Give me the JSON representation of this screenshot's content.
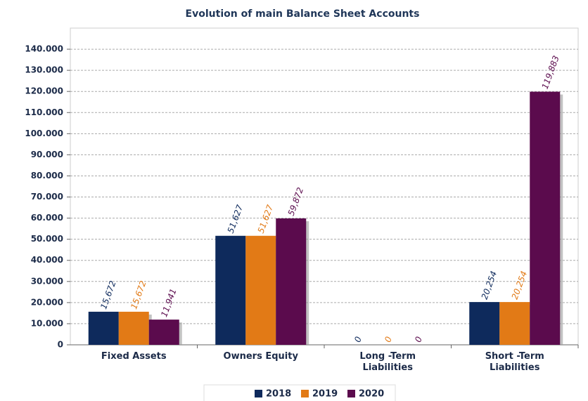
{
  "chart_data": {
    "type": "bar",
    "title": "Evolution of main Balance Sheet Accounts",
    "categories": [
      "Fixed Assets",
      "Owners Equity",
      "Long -Term Liabilities",
      "Short -Term Liabilities"
    ],
    "series": [
      {
        "name": "2018",
        "color": "#0e2a5c",
        "values": [
          15672,
          51627,
          0,
          20254
        ],
        "value_labels": [
          "15,672",
          "51,627",
          "0",
          "20,254"
        ]
      },
      {
        "name": "2019",
        "color": "#e27a16",
        "values": [
          15672,
          51627,
          0,
          20254
        ],
        "value_labels": [
          "15,672",
          "51,627",
          "0",
          "20,254"
        ]
      },
      {
        "name": "2020",
        "color": "#5b0b4d",
        "values": [
          11941,
          59872,
          0,
          119883
        ],
        "value_labels": [
          "11,941",
          "59,872",
          "0",
          "119,883"
        ]
      }
    ],
    "ylim": [
      0,
      150000
    ],
    "yticks": [
      0,
      {
        "value": 10000,
        "label": "10.000"
      },
      {
        "value": 20000,
        "label": "20.000"
      },
      {
        "value": 30000,
        "label": "30.000"
      },
      {
        "value": 40000,
        "label": "40.000"
      },
      {
        "value": 50000,
        "label": "50.000"
      },
      {
        "value": 60000,
        "label": "60.000"
      },
      {
        "value": 70000,
        "label": "70.000"
      },
      {
        "value": 80000,
        "label": "80.000"
      },
      {
        "value": 90000,
        "label": "90.000"
      },
      {
        "value": 100000,
        "label": "100.000"
      },
      {
        "value": 110000,
        "label": "110.000"
      },
      {
        "value": 120000,
        "label": "120.000"
      },
      {
        "value": 130000,
        "label": "130.000"
      },
      {
        "value": 140000,
        "label": "140.000"
      }
    ],
    "grid": true,
    "legend": "bottom"
  }
}
